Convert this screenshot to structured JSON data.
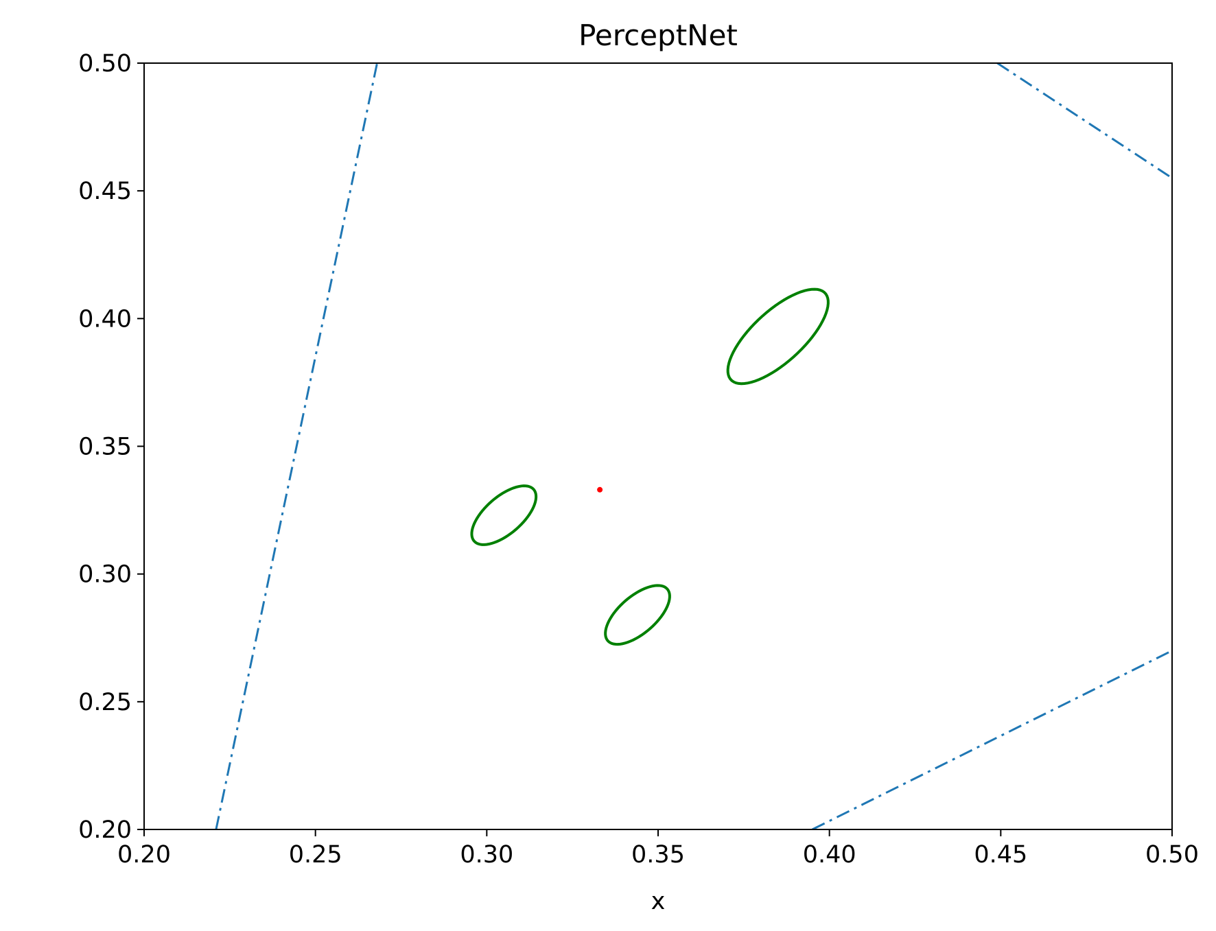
{
  "chart_data": {
    "type": "line",
    "title": "PerceptNet",
    "xlabel": "x",
    "ylabel": "",
    "xlim": [
      0.2,
      0.5
    ],
    "ylim": [
      0.2,
      0.5
    ],
    "x_ticks": [
      "0.20",
      "0.25",
      "0.30",
      "0.35",
      "0.40",
      "0.45",
      "0.50"
    ],
    "y_ticks": [
      "0.20",
      "0.25",
      "0.30",
      "0.35",
      "0.40",
      "0.45",
      "0.50"
    ],
    "grid": false,
    "series": [
      {
        "kind": "boundary-line",
        "style": "dash-dot",
        "color": "#1f77b4",
        "points": [
          [
            0.221,
            0.2
          ],
          [
            0.268,
            0.5
          ]
        ]
      },
      {
        "kind": "boundary-line",
        "style": "dash-dot",
        "color": "#1f77b4",
        "points": [
          [
            0.449,
            0.5
          ],
          [
            0.5,
            0.455
          ]
        ]
      },
      {
        "kind": "boundary-line",
        "style": "dash-dot",
        "color": "#1f77b4",
        "points": [
          [
            0.395,
            0.2
          ],
          [
            0.5,
            0.27
          ]
        ]
      },
      {
        "kind": "ellipse",
        "color": "#008000",
        "center": [
          0.305,
          0.323
        ],
        "semi_axes": [
          0.0062,
          0.0135
        ],
        "angle_deg": -36
      },
      {
        "kind": "ellipse",
        "color": "#008000",
        "center": [
          0.344,
          0.284
        ],
        "semi_axes": [
          0.0062,
          0.0135
        ],
        "angle_deg": -36
      },
      {
        "kind": "ellipse",
        "color": "#008000",
        "center": [
          0.385,
          0.393
        ],
        "semi_axes": [
          0.0085,
          0.022
        ],
        "angle_deg": -36
      },
      {
        "kind": "point",
        "color": "#ff0000",
        "points": [
          [
            0.333,
            0.333
          ]
        ]
      }
    ]
  }
}
